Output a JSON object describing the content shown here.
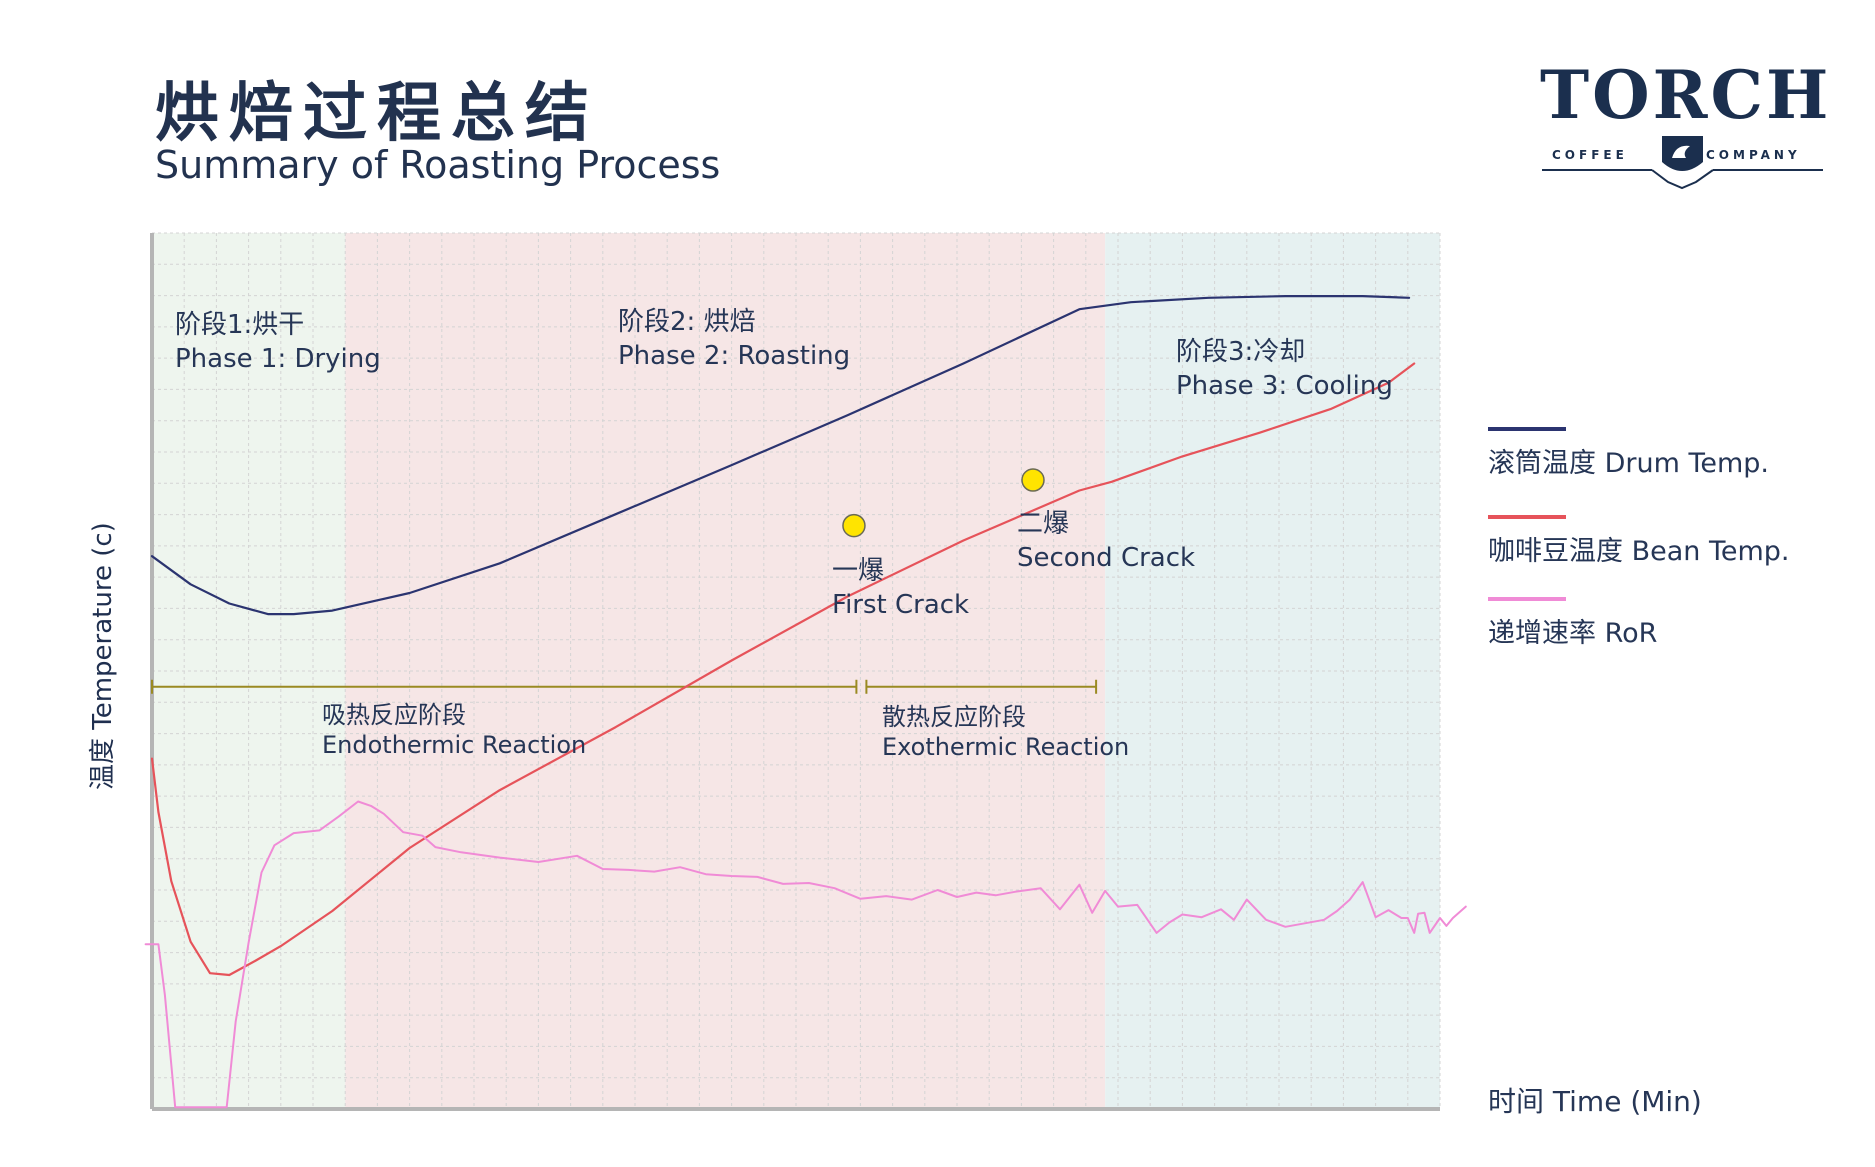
{
  "title": {
    "zh": "烘焙过程总结",
    "en": "Summary of Roasting Process"
  },
  "logo": {
    "name": "TORCH",
    "left_sub": "COFFEE",
    "right_sub": "COMPANY"
  },
  "colors": {
    "drum": "#2b3470",
    "bean": "#e6535a",
    "ror": "#f08bd6",
    "phase1_bg": "#eef5ee",
    "phase2_bg": "#f6e6e6",
    "phase3_bg": "#e6f1f1",
    "reaction_line": "#9a8a22",
    "crack_marker": "#ffe400"
  },
  "chart_data": {
    "type": "line",
    "xlabel": "时间 Time (Min)",
    "ylabel": "温度 Temperature (c)",
    "xlim": [
      0,
      100
    ],
    "ylim": [
      0,
      100
    ],
    "grid": true,
    "legend_position": "right",
    "series": [
      {
        "name": "滚筒温度 Drum Temp.",
        "key": "drum",
        "x": [
          0,
          3,
          6,
          9,
          11,
          14,
          20,
          27,
          36,
          45,
          54,
          63,
          72,
          76,
          82,
          88,
          94,
          97.6
        ],
        "y": [
          63.1,
          59.9,
          57.7,
          56.5,
          56.5,
          56.9,
          58.9,
          62.3,
          67.9,
          73.5,
          79.2,
          85.1,
          91.3,
          92.1,
          92.6,
          92.8,
          92.8,
          92.6
        ]
      },
      {
        "name": "咖啡豆温度 Bean Temp.",
        "key": "bean",
        "x": [
          0,
          0.5,
          1.5,
          3,
          4.5,
          6,
          8,
          10,
          14,
          20,
          27,
          36,
          45,
          54,
          63,
          72,
          74.5,
          80,
          86,
          91.5,
          96,
          98
        ],
        "y": [
          40.0,
          33.9,
          26.0,
          19.1,
          15.5,
          15.3,
          16.9,
          18.6,
          22.6,
          29.8,
          36.4,
          43.6,
          51.2,
          58.5,
          64.9,
          70.6,
          71.6,
          74.5,
          77.2,
          79.9,
          82.9,
          85.1
        ]
      },
      {
        "name": "递增速率 RoR",
        "key": "ror",
        "x": [
          -0.5,
          0.5,
          1.0,
          1.8,
          2.5,
          3.5,
          4.5,
          5.8,
          6.5,
          7.5,
          8.5,
          9.5,
          11,
          13,
          14.5,
          16,
          17,
          18,
          19.5,
          21,
          22,
          24,
          27,
          30,
          33,
          35,
          37,
          39,
          41,
          43,
          45,
          47,
          49,
          51,
          53,
          55,
          57,
          59,
          61,
          62.5,
          64,
          65.5,
          67,
          69,
          70.5,
          72,
          73,
          74,
          75,
          76.5,
          78,
          79,
          80,
          81.5,
          83,
          84,
          85,
          86.5,
          88,
          89.5,
          91,
          92,
          93,
          94,
          95,
          96,
          97,
          97.5,
          98,
          98.3,
          98.8,
          99.2,
          100,
          100.5,
          101,
          102
        ],
        "y": [
          18.8,
          18.8,
          13,
          0.2,
          0.2,
          0.2,
          0.2,
          0.2,
          10,
          19,
          27,
          30.1,
          31.5,
          31.8,
          33.4,
          35.1,
          34.6,
          33.7,
          31.6,
          31.2,
          29.9,
          29.3,
          28.7,
          28.2,
          28.9,
          27.4,
          27.3,
          27.1,
          27.6,
          26.8,
          26.6,
          26.5,
          25.7,
          25.8,
          25.2,
          24.0,
          24.3,
          23.9,
          25.0,
          24.2,
          24.7,
          24.4,
          24.8,
          25.2,
          22.8,
          25.6,
          22.4,
          24.9,
          23.1,
          23.3,
          20.1,
          21.3,
          22.2,
          21.9,
          22.8,
          21.6,
          23.9,
          21.6,
          20.8,
          21.2,
          21.6,
          22.6,
          23.9,
          25.9,
          21.9,
          22.7,
          21.8,
          21.8,
          20.1,
          22.3,
          22.4,
          20.1,
          21.8,
          20.9,
          21.8,
          23.1
        ]
      }
    ],
    "phases": [
      {
        "zh": "阶段1:烘干",
        "en": "Phase 1: Drying",
        "x_start": 0,
        "x_end": 15
      },
      {
        "zh": "阶段2: 烘焙",
        "en": "Phase 2: Roasting",
        "x_start": 15,
        "x_end": 74
      },
      {
        "zh": "阶段3:冷却",
        "en": "Phase 3: Cooling",
        "x_start": 74,
        "x_end": 100
      }
    ],
    "annotations": [
      {
        "zh": "一爆",
        "en": "First Crack",
        "x": 54.5,
        "y": 66.6
      },
      {
        "zh": "二爆",
        "en": "Second Crack",
        "x": 68.4,
        "y": 71.8
      }
    ],
    "reactions": [
      {
        "zh": "吸热反应阶段",
        "en": "Endothermic Reaction",
        "x_start": 0,
        "x_end": 55
      },
      {
        "zh": "散热反应阶段",
        "en": "Exothermic Reaction",
        "x_start": 55,
        "x_end": 73.3
      }
    ],
    "reaction_y": 48.2
  }
}
